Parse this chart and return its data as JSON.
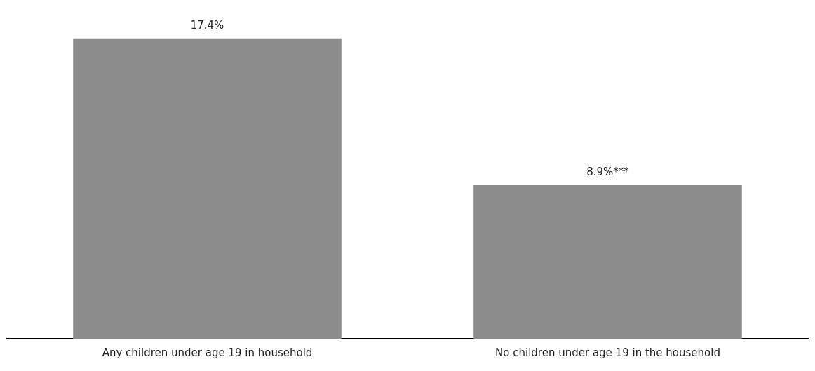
{
  "chart_data": {
    "type": "bar",
    "categories": [
      "Any children under age 19 in household",
      "No children under age 19 in the household"
    ],
    "values": [
      17.4,
      8.9
    ],
    "color": "#8c8c8c",
    "value_labels": [
      "17.4%",
      "8.9%***"
    ],
    "grid": false,
    "legend": false
  }
}
